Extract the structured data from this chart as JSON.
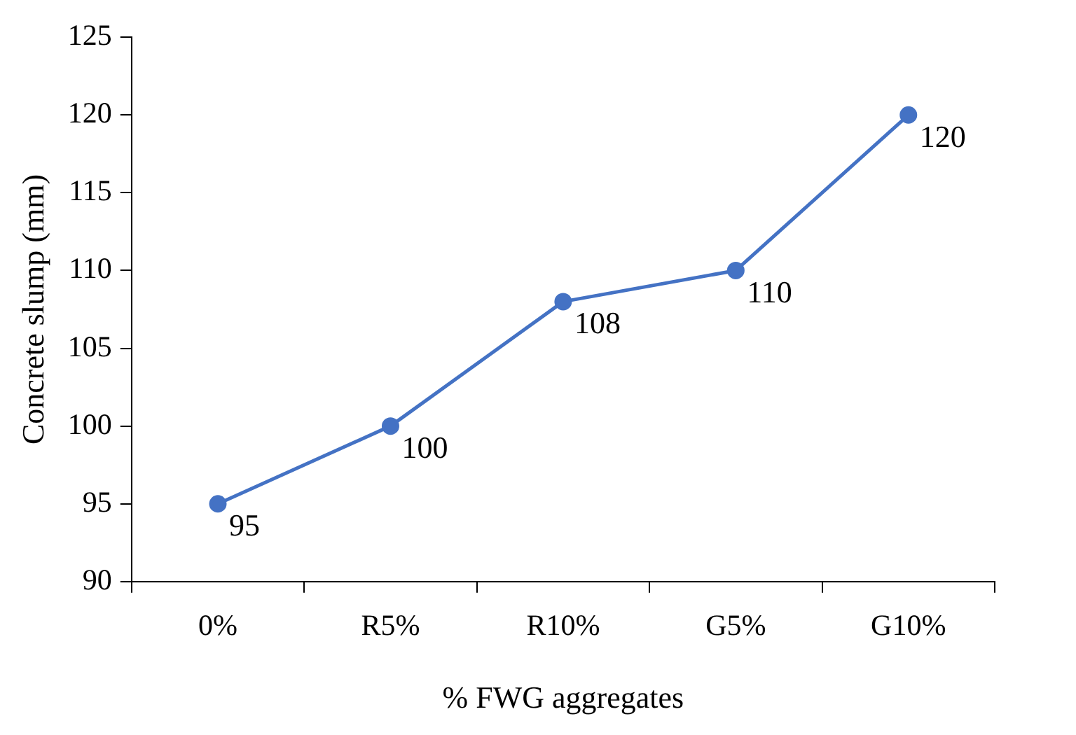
{
  "chart_data": {
    "type": "line",
    "xlabel": "% FWG aggregates",
    "ylabel": "Concrete slump (mm)",
    "categories": [
      "0%",
      "R5%",
      "R10%",
      "G5%",
      "G10%"
    ],
    "series": [
      {
        "color": "#4472c4",
        "values": [
          95,
          100,
          108,
          110,
          120
        ]
      }
    ],
    "ylim": [
      90,
      125
    ],
    "yticks": [
      90,
      95,
      100,
      105,
      110,
      115,
      120,
      125
    ],
    "grid": false,
    "legend": false,
    "marker": "circle",
    "line_style": "solid",
    "data_labels": true
  }
}
